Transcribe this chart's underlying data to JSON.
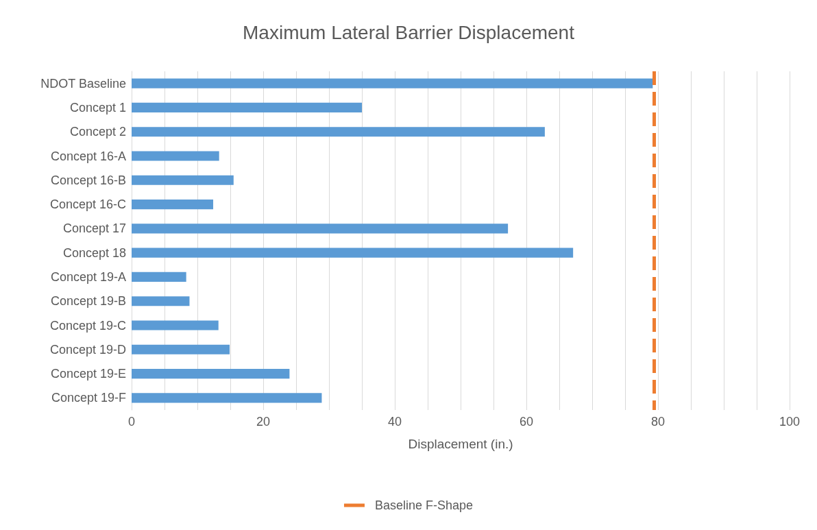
{
  "chart_data": {
    "type": "bar",
    "orientation": "horizontal",
    "title": "Maximum Lateral Barrier Displacement",
    "xlabel": "Displacement (in.)",
    "categories": [
      "NDOT Baseline",
      "Concept 1",
      "Concept 2",
      "Concept 16-A",
      "Concept 16-B",
      "Concept 16-C",
      "Concept 17",
      "Concept 18",
      "Concept 19-A",
      "Concept 19-B",
      "Concept 19-C",
      "Concept 19-D",
      "Concept 19-E",
      "Concept 19-F"
    ],
    "values": [
      79.2,
      35.0,
      62.8,
      13.3,
      15.5,
      12.4,
      57.2,
      67.1,
      8.3,
      8.8,
      13.2,
      14.9,
      24.0,
      28.9
    ],
    "color": "#5b9bd5",
    "xlim": [
      0,
      100
    ],
    "xticks": [
      0,
      {
        "value": 5,
        "label": null
      },
      {
        "value": 10,
        "label": null
      },
      {
        "value": 15,
        "label": null
      },
      20,
      {
        "value": 25,
        "label": null
      },
      {
        "value": 30,
        "label": null
      },
      {
        "value": 35,
        "label": null
      },
      40,
      {
        "value": 45,
        "label": null
      },
      {
        "value": 50,
        "label": null
      },
      {
        "value": 55,
        "label": null
      },
      60,
      {
        "value": 65,
        "label": null
      },
      {
        "value": 70,
        "label": null
      },
      {
        "value": 75,
        "label": null
      },
      80,
      {
        "value": 85,
        "label": null
      },
      {
        "value": 90,
        "label": null
      },
      {
        "value": 95,
        "label": null
      },
      100
    ],
    "ref_lines": [
      {
        "axis": "x",
        "value": 79.4,
        "label": "Baseline F-Shape",
        "color": "#ed7d31",
        "line_style": "dashed"
      }
    ],
    "grid": "x",
    "legend": "bottom"
  }
}
